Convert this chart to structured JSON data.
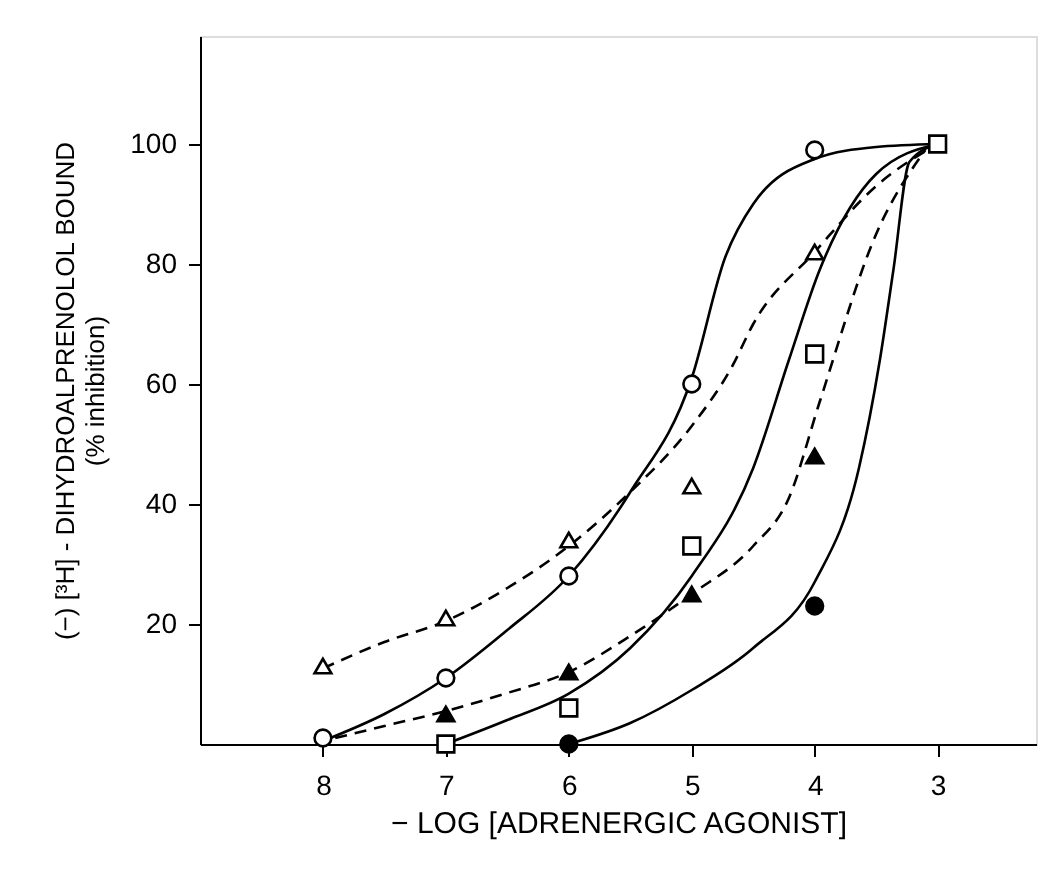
{
  "chart_data": {
    "type": "scatter",
    "xlabel": "− LOG [ADRENERGIC AGONIST]",
    "ylabel": "(−) [³H] - DIHYDROALPRENOLOL BOUND\n(% inhibition)",
    "xlim": [
      9,
      2.2
    ],
    "xticks": [
      8,
      7,
      6,
      5,
      4,
      3
    ],
    "ylim": [
      0,
      118
    ],
    "yticks": [
      20,
      40,
      60,
      80,
      100
    ],
    "grid": false,
    "series": [
      {
        "type": "line",
        "line_style": "solid",
        "color": "#000000",
        "x": [
          8,
          7.5,
          7,
          6.5,
          6,
          5.5,
          5,
          4.73,
          4.5,
          4,
          3.5,
          3
        ],
        "values": [
          0.5,
          5,
          11,
          19,
          28,
          42,
          61,
          81,
          90,
          97.5,
          99.5,
          100
        ]
      },
      {
        "type": "line",
        "line_style": "dashed",
        "color": "#000000",
        "x": [
          8,
          7.5,
          7,
          6.5,
          6,
          5.5,
          5,
          4.67,
          4.5,
          4,
          3.5,
          3
        ],
        "values": [
          12.6,
          17,
          20.5,
          26,
          33,
          42,
          53,
          63,
          70,
          82,
          93,
          100
        ]
      },
      {
        "type": "line",
        "line_style": "solid",
        "color": "#000000",
        "x": [
          7,
          6.5,
          6,
          5.5,
          5,
          4.5,
          4.21,
          3.96,
          3.5,
          3
        ],
        "values": [
          0,
          4,
          8.4,
          16,
          28,
          46,
          64,
          79,
          95,
          100
        ]
      },
      {
        "type": "line",
        "line_style": "dashed",
        "color": "#000000",
        "x": [
          7.9,
          7.5,
          7,
          6.5,
          6,
          5.5,
          5,
          4.5,
          4.21,
          3.96,
          3.5,
          3.1
        ],
        "values": [
          1,
          3,
          5.5,
          8.5,
          12,
          18,
          25,
          33,
          41,
          57,
          85,
          99
        ]
      },
      {
        "type": "line",
        "line_style": "solid",
        "color": "#000000",
        "x": [
          6,
          5.5,
          5,
          4.5,
          4,
          3.64,
          3.47,
          3.36,
          3.23,
          3
        ],
        "values": [
          0,
          3.5,
          9,
          16,
          27,
          46,
          64,
          79,
          97,
          100
        ]
      },
      {
        "marker": "circle",
        "color": "#ffffff",
        "x": [
          8,
          7,
          6,
          5,
          4
        ],
        "values": [
          1,
          11,
          28,
          60,
          99
        ]
      },
      {
        "marker": "triangle",
        "color": "#ffffff",
        "x": [
          8,
          7,
          6,
          5,
          4
        ],
        "values": [
          13,
          21,
          34,
          43,
          82
        ]
      },
      {
        "marker": "square",
        "color": "#ffffff",
        "x": [
          7,
          6,
          5,
          4,
          3
        ],
        "values": [
          0,
          6,
          33,
          65,
          100
        ]
      },
      {
        "marker": "triangle",
        "color": "#000000",
        "x": [
          7,
          6,
          5,
          4
        ],
        "values": [
          5,
          12,
          25,
          48
        ]
      },
      {
        "marker": "circle",
        "color": "#000000",
        "x": [
          6,
          4
        ],
        "values": [
          0,
          23
        ]
      }
    ]
  }
}
